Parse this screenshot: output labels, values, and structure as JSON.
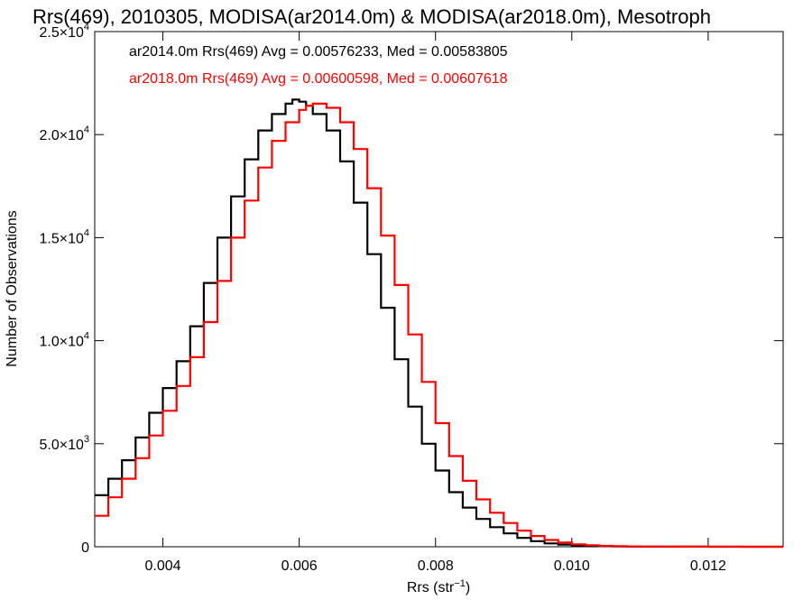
{
  "chart_data": {
    "type": "line",
    "title": "Rrs(469), 2010305, MODISA(ar2014.0m) & MODISA(ar2018.0m), Mesotroph",
    "xlabel": "Rrs (str",
    "xlabel_sup": "−1",
    "xlabel_end": ")",
    "ylabel": "Number of Observations",
    "xlim": [
      0.003,
      0.0131
    ],
    "ylim": [
      0,
      25000
    ],
    "x_ticks": [
      {
        "value": 0.004,
        "label": "0.004"
      },
      {
        "value": 0.006,
        "label": "0.006"
      },
      {
        "value": 0.008,
        "label": "0.008"
      },
      {
        "value": 0.01,
        "label": "0.010"
      },
      {
        "value": 0.012,
        "label": "0.012"
      }
    ],
    "y_ticks": [
      {
        "value": 0,
        "mant": "0",
        "exp": ""
      },
      {
        "value": 5000,
        "mant": "5.0×10",
        "exp": "3"
      },
      {
        "value": 10000,
        "mant": "1.0×10",
        "exp": "4"
      },
      {
        "value": 15000,
        "mant": "1.5×10",
        "exp": "4"
      },
      {
        "value": 20000,
        "mant": "2.0×10",
        "exp": "4"
      },
      {
        "value": 25000,
        "mant": "2.5×10",
        "exp": "4"
      }
    ],
    "grid": false,
    "step": true,
    "annotations": [
      {
        "text": "ar2014.0m Rrs(469) Avg = 0.00576233, Med = 0.00583805",
        "color": "#000000"
      },
      {
        "text": "ar2018.0m Rrs(469) Avg = 0.00600598, Med = 0.00607618",
        "color": "#ff0000"
      }
    ],
    "series": [
      {
        "color": "#000000",
        "x": [
          0.003,
          0.0032,
          0.0034,
          0.0036,
          0.0038,
          0.004,
          0.0042,
          0.0044,
          0.0046,
          0.0048,
          0.005,
          0.0052,
          0.0054,
          0.0056,
          0.0058,
          0.0059,
          0.006,
          0.0061,
          0.0062,
          0.0064,
          0.0066,
          0.0068,
          0.007,
          0.0072,
          0.0074,
          0.0076,
          0.0078,
          0.008,
          0.0082,
          0.0084,
          0.0086,
          0.0088,
          0.009,
          0.0092,
          0.0094,
          0.0096,
          0.0098,
          0.01,
          0.0102,
          0.0104,
          0.0106,
          0.0108,
          0.011,
          0.0115,
          0.012,
          0.0125,
          0.0131
        ],
        "y": [
          2500,
          3300,
          4200,
          5300,
          6500,
          7700,
          9000,
          10700,
          12800,
          15000,
          17000,
          18800,
          20200,
          21000,
          21500,
          21700,
          21600,
          21400,
          21000,
          20200,
          18700,
          16700,
          14200,
          11600,
          9100,
          6800,
          5000,
          3700,
          2650,
          1900,
          1350,
          950,
          650,
          430,
          270,
          160,
          100,
          60,
          40,
          25,
          15,
          10,
          5,
          3,
          2,
          1,
          0
        ]
      },
      {
        "color": "#ff0000",
        "x": [
          0.003,
          0.0032,
          0.0034,
          0.0036,
          0.0038,
          0.004,
          0.0042,
          0.0044,
          0.0046,
          0.0048,
          0.005,
          0.0052,
          0.0054,
          0.0056,
          0.0058,
          0.006,
          0.0061,
          0.0062,
          0.0063,
          0.0064,
          0.0066,
          0.0068,
          0.007,
          0.0072,
          0.0074,
          0.0076,
          0.0078,
          0.008,
          0.0082,
          0.0084,
          0.0086,
          0.0088,
          0.009,
          0.0092,
          0.0094,
          0.0096,
          0.0098,
          0.01,
          0.0102,
          0.0104,
          0.0106,
          0.0108,
          0.011,
          0.0115,
          0.012,
          0.0125,
          0.0131
        ],
        "y": [
          1500,
          2400,
          3300,
          4300,
          5400,
          6600,
          7800,
          9200,
          10900,
          12900,
          15000,
          16800,
          18400,
          19700,
          20600,
          21200,
          21400,
          21500,
          21500,
          21300,
          20600,
          19300,
          17400,
          15100,
          12700,
          10300,
          8000,
          6000,
          4400,
          3200,
          2300,
          1650,
          1150,
          780,
          520,
          330,
          200,
          120,
          75,
          45,
          28,
          18,
          10,
          5,
          3,
          1,
          0
        ]
      }
    ]
  }
}
